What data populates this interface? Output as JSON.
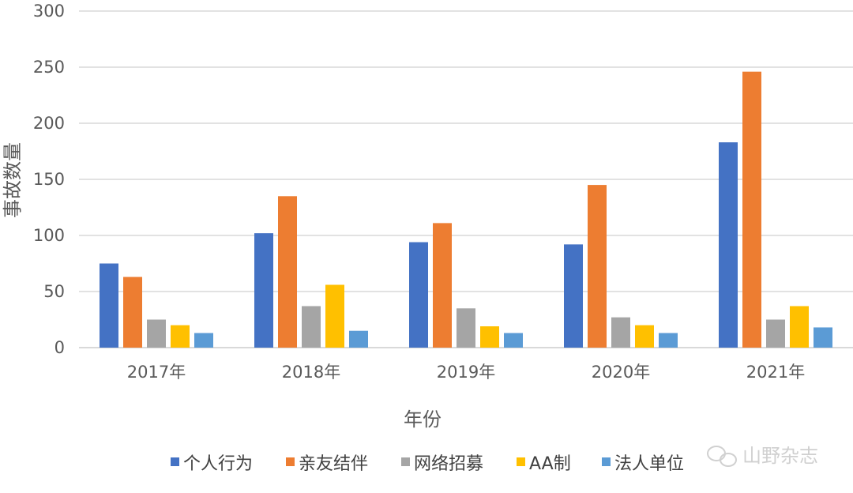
{
  "chart_data": {
    "type": "bar",
    "title": "",
    "xlabel": "年份",
    "ylabel": "事故数量",
    "ylim": [
      0,
      300
    ],
    "yticks": [
      0,
      50,
      100,
      150,
      200,
      250,
      300
    ],
    "grid": true,
    "legend_position": "bottom",
    "categories": [
      "2017年",
      "2018年",
      "2019年",
      "2020年",
      "2021年"
    ],
    "series": [
      {
        "name": "个人行为",
        "color": "#4472c4",
        "values": [
          75,
          102,
          94,
          92,
          183
        ]
      },
      {
        "name": "亲友结伴",
        "color": "#ed7d31",
        "values": [
          63,
          135,
          111,
          145,
          246
        ]
      },
      {
        "name": "网络招募",
        "color": "#a5a5a5",
        "values": [
          25,
          37,
          35,
          27,
          25
        ]
      },
      {
        "name": "AA制",
        "color": "#ffc000",
        "values": [
          20,
          56,
          19,
          20,
          37
        ]
      },
      {
        "name": "法人单位",
        "color": "#5b9bd5",
        "values": [
          13,
          15,
          13,
          13,
          18
        ]
      }
    ]
  },
  "watermark": "山野杂志"
}
